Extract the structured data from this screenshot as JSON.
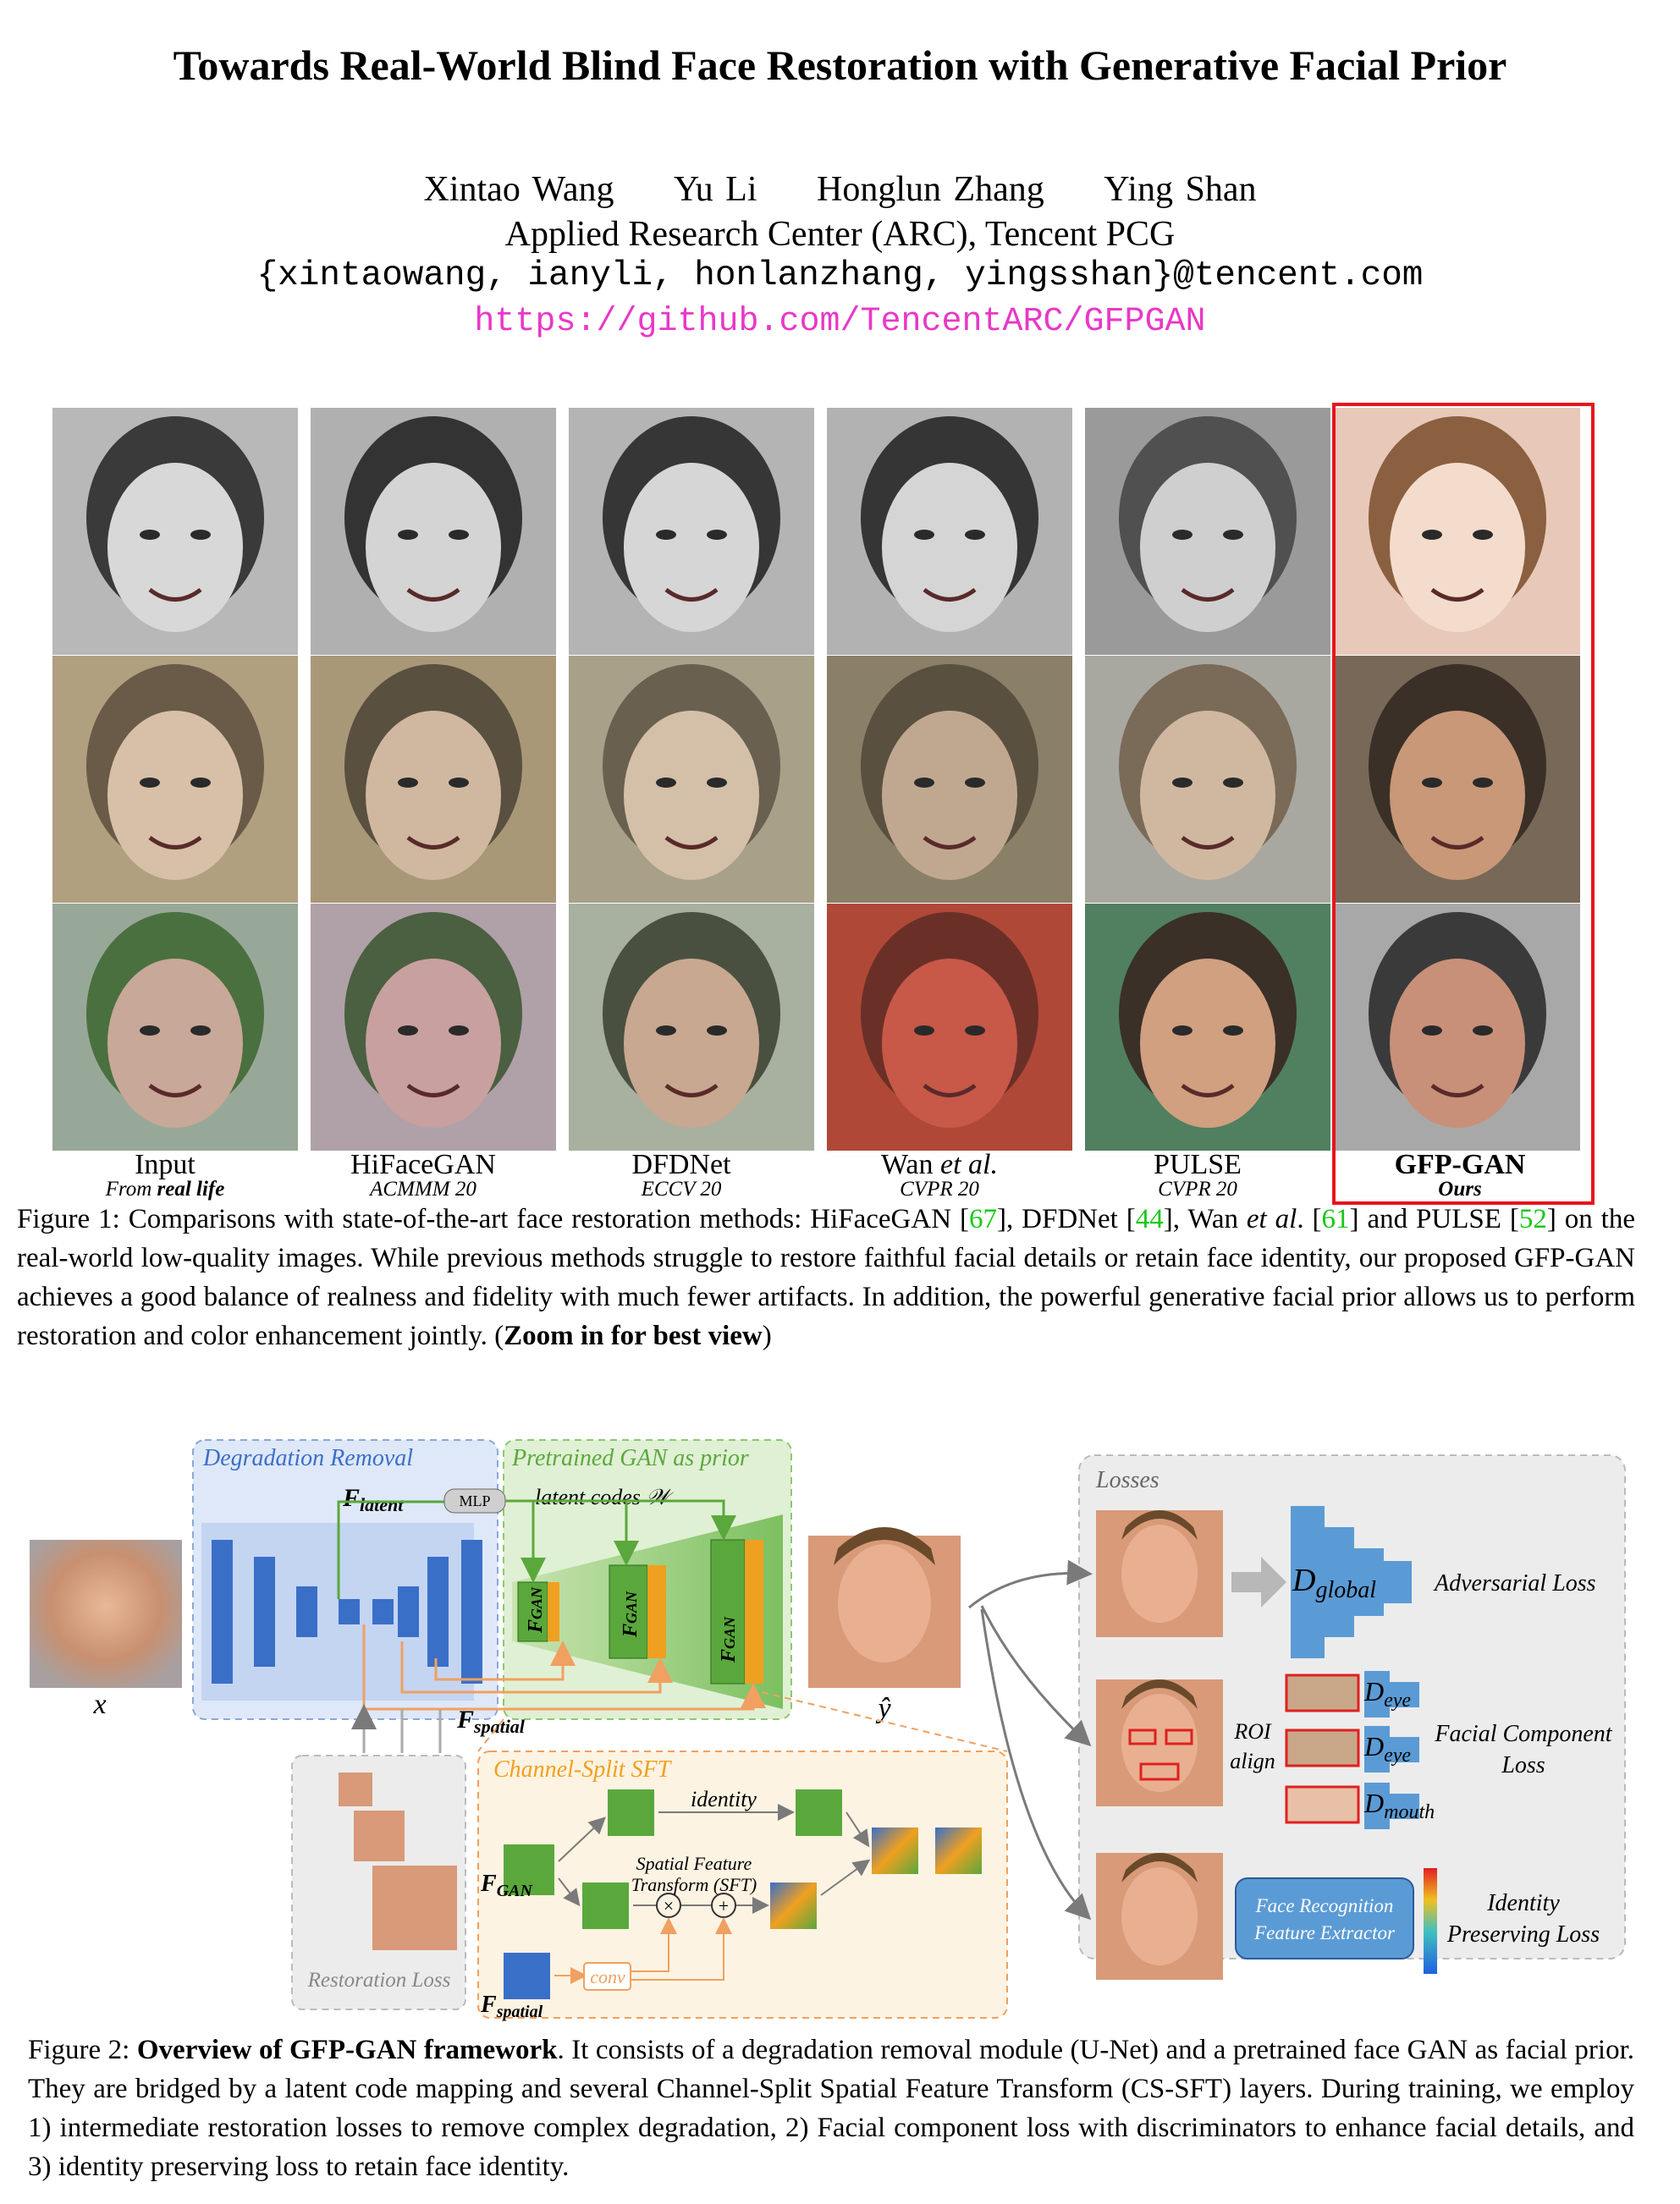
{
  "paper": {
    "title": "Towards Real-World Blind Face Restoration with Generative Facial Prior",
    "authors": [
      "Xintao Wang",
      "Yu Li",
      "Honglun Zhang",
      "Ying Shan"
    ],
    "affiliation": "Applied Research Center (ARC), Tencent PCG",
    "emails": "{xintaowang, ianyli, honlanzhang, yingsshan}@tencent.com",
    "url": "https://github.com/TencentARC/GFPGAN"
  },
  "figure1": {
    "columns": [
      {
        "name": "Input",
        "venue_prefix": "From ",
        "venue": "real life"
      },
      {
        "name": "HiFaceGAN",
        "venue_prefix": "",
        "venue": "ACMMM 20"
      },
      {
        "name": "DFDNet",
        "venue_prefix": "",
        "venue": "ECCV 20"
      },
      {
        "name_main": "Wan ",
        "name_italic": "et al.",
        "venue_prefix": "",
        "venue": "CVPR 20"
      },
      {
        "name": "PULSE",
        "venue_prefix": "",
        "venue": "CVPR 20"
      },
      {
        "name": "GFP-GAN",
        "venue_prefix": "",
        "venue": "Ours"
      }
    ],
    "caption": {
      "lead": "Figure 1: Comparisons with state-of-the-art face restoration methods: HiFaceGAN [",
      "r1": "67",
      "t1": "], DFDNet [",
      "r2": "44",
      "t2": "], Wan ",
      "etal": "et al",
      "t3": ". [",
      "r3": "61",
      "t4": "] and PULSE [",
      "r4": "52",
      "t5": "] on the real-world low-quality images. While previous methods struggle to restore faithful facial details or retain face identity, our proposed GFP-GAN achieves a good balance of realness and fidelity with much fewer artifacts. In addition, the powerful generative facial prior allows us to perform restoration and color enhancement jointly. (",
      "bold": "Zoom in for best view",
      "end": ")"
    }
  },
  "figure2": {
    "labels": {
      "degradation_removal": "Degradation Removal",
      "pretrained_gan": "Pretrained GAN as prior",
      "f_latent": "F",
      "f_latent_sub": "latent",
      "mlp": "MLP",
      "latent_codes": "latent codes",
      "latent_sym": "𝒲",
      "f_spatial": "F",
      "f_spatial_sub": "spatial",
      "fgan": "F",
      "fgan_sub": "GAN",
      "cs_sft": "CS-SFT",
      "x": "x",
      "yhat": "ŷ",
      "losses": "Losses",
      "d_global": "D",
      "d_global_sub": "global",
      "adversarial_loss": "Adversarial Loss",
      "roi": "ROI",
      "align": "align",
      "d_eye": "D",
      "d_eye_sub": "eye",
      "d_mouth": "D",
      "d_mouth_sub": "mouth",
      "facial_component": "Facial Component",
      "loss": "Loss",
      "face_recog_1": "Face Recognition",
      "face_recog_2": "Feature Extractor",
      "identity": "Identity",
      "preserving_loss": "Preserving Loss",
      "channel_split_sft": "Channel-Split SFT",
      "identity_arrow": "identity",
      "sft_1": "Spatial Feature",
      "sft_2": "Transform (SFT)",
      "conv": "conv",
      "restoration_loss": "Restoration Loss"
    },
    "caption": {
      "lead": "Figure 2: ",
      "bold": "Overview of GFP-GAN framework",
      "rest": ". It consists of a degradation removal module (U-Net) and a pretrained face GAN as facial prior. They are bridged by a latent code mapping and several Channel-Split Spatial Feature Transform (CS-SFT) layers. During training, we employ 1) intermediate restoration losses to remove complex degradation, 2) Facial component loss with discriminators to enhance facial details, and 3) identity preserving loss to retain face identity."
    }
  },
  "colors": {
    "accent_url": "#e838c8",
    "ref_green": "#18c818",
    "highlight_red": "#e8141c",
    "unet_blue": "#3a6fc8",
    "gan_green": "#5aa83c",
    "sft_orange": "#f0a020"
  }
}
